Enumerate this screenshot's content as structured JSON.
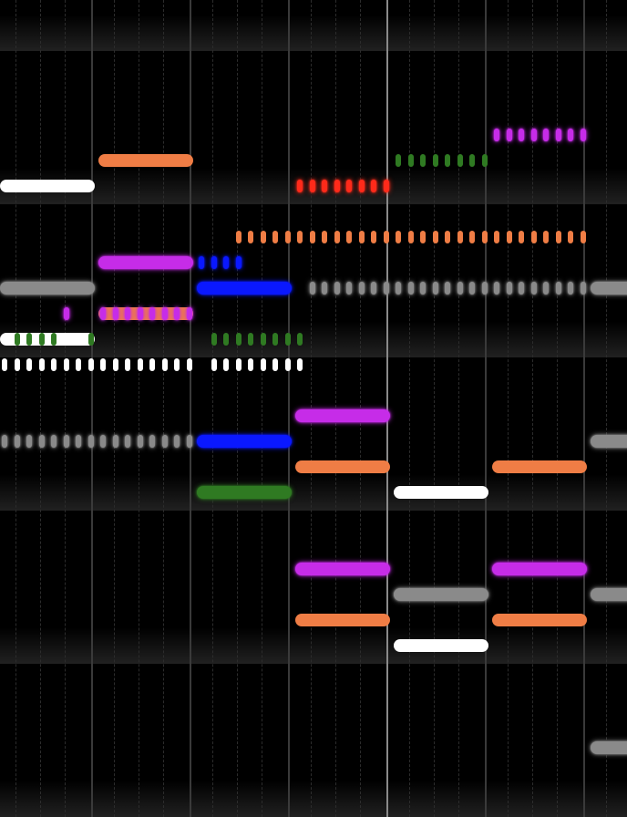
{
  "colors": {
    "white": "#ffffff",
    "orange": "#ef7d45",
    "blue": "#0a18ff",
    "green": "#2f7a22",
    "grey": "#8a8a8a",
    "magenta": "#c62ce8",
    "red": "#ff2a1a"
  },
  "notes": [
    {
      "color": "white",
      "style": "long",
      "row": 7,
      "start_beat": 0,
      "length_beats": 4
    },
    {
      "color": "orange",
      "style": "long",
      "row": 6,
      "start_beat": 4,
      "length_beats": 4
    },
    {
      "color": "white",
      "style": "long",
      "row": 13,
      "start_beat": 0,
      "length_beats": 4
    },
    {
      "color": "orange",
      "style": "long",
      "row": 12,
      "start_beat": 4,
      "length_beats": 4
    },
    {
      "color": "magenta",
      "style": "long",
      "row": 10,
      "start_beat": 4,
      "length_beats": 4
    },
    {
      "color": "grey",
      "style": "long",
      "row": 11,
      "start_beat": 0,
      "length_beats": 4
    },
    {
      "color": "blue",
      "style": "long",
      "row": 11,
      "start_beat": 8,
      "length_beats": 4
    },
    {
      "color": "blue",
      "style": "long",
      "row": 17,
      "start_beat": 8,
      "length_beats": 4
    },
    {
      "color": "green",
      "style": "long",
      "row": 19,
      "start_beat": 8,
      "length_beats": 4
    },
    {
      "color": "orange",
      "style": "long",
      "row": 18,
      "start_beat": 12,
      "length_beats": 4
    },
    {
      "color": "orange",
      "style": "long",
      "row": 24,
      "start_beat": 12,
      "length_beats": 4
    },
    {
      "color": "magenta",
      "style": "long",
      "row": 16,
      "start_beat": 12,
      "length_beats": 4
    },
    {
      "color": "magenta",
      "style": "long",
      "row": 22,
      "start_beat": 12,
      "length_beats": 4
    },
    {
      "color": "white",
      "style": "long",
      "row": 19,
      "start_beat": 16,
      "length_beats": 4
    },
    {
      "color": "white",
      "style": "long",
      "row": 25,
      "start_beat": 16,
      "length_beats": 4
    },
    {
      "color": "grey",
      "style": "long",
      "row": 23,
      "start_beat": 16,
      "length_beats": 4
    },
    {
      "color": "orange",
      "style": "long",
      "row": 18,
      "start_beat": 20,
      "length_beats": 4
    },
    {
      "color": "orange",
      "style": "long",
      "row": 24,
      "start_beat": 20,
      "length_beats": 4
    },
    {
      "color": "magenta",
      "style": "long",
      "row": 22,
      "start_beat": 20,
      "length_beats": 4
    },
    {
      "color": "grey",
      "style": "long",
      "row": 11,
      "start_beat": 24,
      "length_beats": 2
    },
    {
      "color": "grey",
      "style": "long",
      "row": 17,
      "start_beat": 24,
      "length_beats": 2
    },
    {
      "color": "grey",
      "style": "long",
      "row": 23,
      "start_beat": 24,
      "length_beats": 2
    },
    {
      "color": "grey",
      "style": "long",
      "row": 29,
      "start_beat": 24,
      "length_beats": 2
    },
    {
      "color": "red",
      "style": "dots",
      "row": 7,
      "start_beat": 12,
      "length_beats": 4
    },
    {
      "color": "green",
      "style": "dots",
      "row": 6,
      "start_beat": 16,
      "length_beats": 4
    },
    {
      "color": "magenta",
      "style": "dots",
      "row": 5,
      "start_beat": 20,
      "length_beats": 4
    },
    {
      "color": "orange",
      "style": "dots",
      "row": 9,
      "start_beat": 9.5,
      "length_beats": 14.5
    },
    {
      "color": "blue",
      "style": "dots",
      "row": 10,
      "start_beat": 8,
      "length_beats": 2
    },
    {
      "color": "grey",
      "style": "dots",
      "row": 11,
      "start_beat": 12.5,
      "length_beats": 11.5
    },
    {
      "color": "magenta",
      "style": "dots",
      "row": 12,
      "start_beat": 2.5,
      "length_beats": 0.5
    },
    {
      "color": "magenta",
      "style": "dots",
      "row": 12,
      "start_beat": 4,
      "length_beats": 4
    },
    {
      "color": "green",
      "style": "dots",
      "row": 13,
      "start_beat": 0.5,
      "length_beats": 2
    },
    {
      "color": "green",
      "style": "dots",
      "row": 13,
      "start_beat": 3.5,
      "length_beats": 0.5
    },
    {
      "color": "green",
      "style": "dots",
      "row": 13,
      "start_beat": 8.5,
      "length_beats": 4
    },
    {
      "color": "white",
      "style": "dots",
      "row": 14,
      "start_beat": 0,
      "length_beats": 8
    },
    {
      "color": "white",
      "style": "dots",
      "row": 14,
      "start_beat": 8.5,
      "length_beats": 4
    },
    {
      "color": "grey",
      "style": "dots",
      "row": 17,
      "start_beat": 0,
      "length_beats": 8
    }
  ]
}
